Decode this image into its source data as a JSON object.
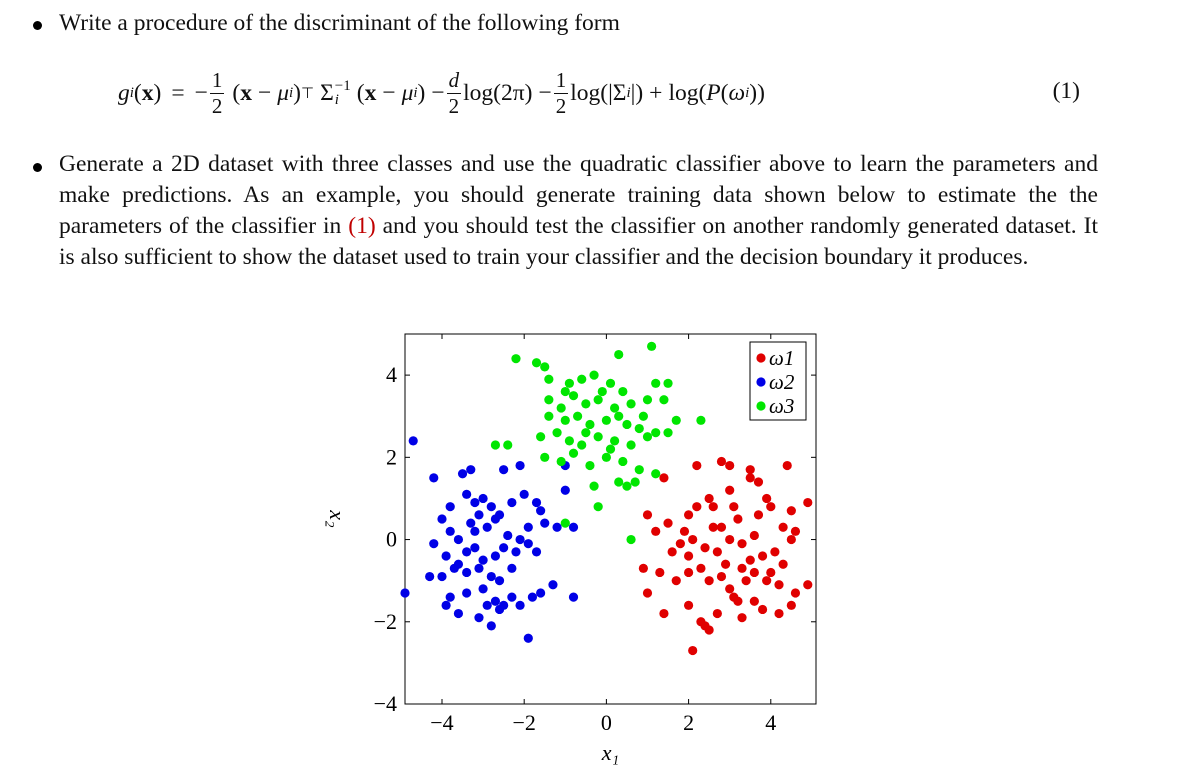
{
  "bullets": [
    {
      "text": "Write a procedure of the discriminant of the following form"
    },
    {
      "text_parts": [
        "Generate a 2D dataset with three classes and use the quadratic classifier above to learn the parameters and make predictions. As an example, you should generate training data shown below to estimate the the parameters of the classifier in ",
        "(1)",
        " and you should test the classifier on another randomly generated dataset. It is also sufficient to show the dataset used to train your classifier and the decision boundary it produces."
      ]
    }
  ],
  "equation": {
    "lhs_func": "g",
    "lhs_sub": "i",
    "lhs_arg": "x",
    "frac_num": "1",
    "frac_den": "2",
    "frac2_num": "d",
    "frac2_den": "2",
    "mu": "μ",
    "sigma": "Σ",
    "transpose": "⊤",
    "inverse": "−1",
    "log": "log",
    "two_pi": "(2π)",
    "prob": "P",
    "omega": "ω",
    "number": "(1)"
  },
  "colors": {
    "omega1": "#e00000",
    "omega2": "#0000e6",
    "omega3": "#00e600",
    "ref": "#c00000"
  },
  "chart_data": {
    "type": "scatter",
    "xlabel": "x₁",
    "ylabel": "x₂",
    "xlim": [
      -4.9,
      5.1
    ],
    "ylim": [
      -4,
      5
    ],
    "xticks": [
      -4,
      -2,
      0,
      2,
      4
    ],
    "yticks": [
      -4,
      -2,
      0,
      2,
      4
    ],
    "xtick_labels": [
      "−4",
      "−2",
      "0",
      "2",
      "4"
    ],
    "ytick_labels": [
      "−4",
      "−2",
      "0",
      "2",
      "4"
    ],
    "legend_position": "top-right",
    "series": [
      {
        "name": "ω1",
        "color": "#e00000",
        "points": [
          [
            1.4,
            1.5
          ],
          [
            2.2,
            1.8
          ],
          [
            2.8,
            1.9
          ],
          [
            3.0,
            1.8
          ],
          [
            3.5,
            1.7
          ],
          [
            4.4,
            1.8
          ],
          [
            1.0,
            0.6
          ],
          [
            1.5,
            0.4
          ],
          [
            2.0,
            0.6
          ],
          [
            2.2,
            0.8
          ],
          [
            2.5,
            1.0
          ],
          [
            2.6,
            0.8
          ],
          [
            3.0,
            1.2
          ],
          [
            3.5,
            1.5
          ],
          [
            3.7,
            1.4
          ],
          [
            3.9,
            1.0
          ],
          [
            4.0,
            0.8
          ],
          [
            3.2,
            0.5
          ],
          [
            2.8,
            0.3
          ],
          [
            3.0,
            0.0
          ],
          [
            4.5,
            0.7
          ],
          [
            4.9,
            0.9
          ],
          [
            1.2,
            0.2
          ],
          [
            1.8,
            -0.1
          ],
          [
            2.1,
            0.0
          ],
          [
            2.4,
            -0.2
          ],
          [
            2.7,
            -0.3
          ],
          [
            3.3,
            -0.1
          ],
          [
            3.6,
            0.1
          ],
          [
            3.8,
            -0.4
          ],
          [
            4.1,
            -0.3
          ],
          [
            4.3,
            -0.6
          ],
          [
            4.6,
            0.2
          ],
          [
            4.5,
            0.0
          ],
          [
            0.9,
            -0.7
          ],
          [
            1.3,
            -0.8
          ],
          [
            1.7,
            -1.0
          ],
          [
            2.0,
            -0.8
          ],
          [
            2.3,
            -0.7
          ],
          [
            2.5,
            -1.0
          ],
          [
            2.8,
            -0.9
          ],
          [
            3.0,
            -1.2
          ],
          [
            3.2,
            -1.5
          ],
          [
            3.4,
            -1.0
          ],
          [
            3.6,
            -0.8
          ],
          [
            3.9,
            -1.0
          ],
          [
            4.2,
            -1.1
          ],
          [
            4.6,
            -1.3
          ],
          [
            4.9,
            -1.1
          ],
          [
            1.0,
            -1.3
          ],
          [
            1.4,
            -1.8
          ],
          [
            2.0,
            -1.6
          ],
          [
            2.3,
            -2.0
          ],
          [
            2.5,
            -2.2
          ],
          [
            2.7,
            -1.8
          ],
          [
            3.1,
            -1.4
          ],
          [
            3.3,
            -1.9
          ],
          [
            3.8,
            -1.7
          ],
          [
            4.2,
            -1.8
          ],
          [
            4.5,
            -1.6
          ],
          [
            2.1,
            -2.7
          ],
          [
            2.4,
            -2.1
          ],
          [
            3.6,
            -1.5
          ],
          [
            1.6,
            -0.3
          ],
          [
            3.1,
            0.8
          ],
          [
            2.9,
            -0.6
          ],
          [
            3.5,
            -0.5
          ],
          [
            2.6,
            0.3
          ],
          [
            2.0,
            -0.4
          ],
          [
            3.7,
            0.6
          ],
          [
            4.0,
            -0.8
          ],
          [
            1.9,
            0.2
          ],
          [
            3.3,
            -0.7
          ],
          [
            4.3,
            0.3
          ]
        ]
      },
      {
        "name": "ω2",
        "color": "#0000e6",
        "points": [
          [
            -4.7,
            2.4
          ],
          [
            -3.5,
            1.6
          ],
          [
            -3.3,
            1.7
          ],
          [
            -2.5,
            1.7
          ],
          [
            -2.1,
            1.8
          ],
          [
            -1.0,
            1.8
          ],
          [
            -4.2,
            1.5
          ],
          [
            -3.8,
            0.8
          ],
          [
            -3.4,
            1.1
          ],
          [
            -3.2,
            0.9
          ],
          [
            -3.0,
            1.0
          ],
          [
            -2.8,
            0.8
          ],
          [
            -2.6,
            0.6
          ],
          [
            -2.3,
            0.9
          ],
          [
            -2.0,
            1.1
          ],
          [
            -1.7,
            0.9
          ],
          [
            -1.6,
            0.7
          ],
          [
            -1.0,
            1.2
          ],
          [
            -4.0,
            0.5
          ],
          [
            -3.8,
            0.2
          ],
          [
            -3.6,
            0.0
          ],
          [
            -3.3,
            0.4
          ],
          [
            -3.1,
            0.6
          ],
          [
            -2.9,
            0.3
          ],
          [
            -2.7,
            0.5
          ],
          [
            -2.4,
            0.1
          ],
          [
            -2.1,
            0.0
          ],
          [
            -1.9,
            0.3
          ],
          [
            -1.5,
            0.4
          ],
          [
            -1.2,
            0.3
          ],
          [
            -0.8,
            0.3
          ],
          [
            -4.2,
            -0.1
          ],
          [
            -3.9,
            -0.4
          ],
          [
            -3.6,
            -0.6
          ],
          [
            -3.4,
            -0.3
          ],
          [
            -3.2,
            -0.2
          ],
          [
            -3.0,
            -0.5
          ],
          [
            -2.7,
            -0.4
          ],
          [
            -2.5,
            -0.2
          ],
          [
            -2.2,
            -0.3
          ],
          [
            -1.9,
            -0.1
          ],
          [
            -1.7,
            -0.3
          ],
          [
            -4.3,
            -0.9
          ],
          [
            -4.0,
            -0.9
          ],
          [
            -3.7,
            -0.7
          ],
          [
            -3.4,
            -0.8
          ],
          [
            -3.1,
            -0.7
          ],
          [
            -2.8,
            -0.9
          ],
          [
            -2.6,
            -1.0
          ],
          [
            -2.3,
            -0.7
          ],
          [
            -4.9,
            -1.3
          ],
          [
            -3.8,
            -1.4
          ],
          [
            -3.4,
            -1.3
          ],
          [
            -3.0,
            -1.2
          ],
          [
            -2.7,
            -1.5
          ],
          [
            -2.5,
            -1.6
          ],
          [
            -2.3,
            -1.4
          ],
          [
            -2.1,
            -1.6
          ],
          [
            -1.8,
            -1.4
          ],
          [
            -1.6,
            -1.3
          ],
          [
            -1.3,
            -1.1
          ],
          [
            -0.8,
            -1.4
          ],
          [
            -3.6,
            -1.8
          ],
          [
            -3.1,
            -1.9
          ],
          [
            -2.8,
            -2.1
          ],
          [
            -2.6,
            -1.7
          ],
          [
            -1.9,
            -2.4
          ],
          [
            -3.9,
            -1.6
          ],
          [
            -2.9,
            -1.6
          ],
          [
            -3.2,
            0.2
          ]
        ]
      },
      {
        "name": "ω3",
        "color": "#00e600",
        "points": [
          [
            -2.2,
            4.4
          ],
          [
            -1.7,
            4.3
          ],
          [
            -1.5,
            4.2
          ],
          [
            0.3,
            4.5
          ],
          [
            1.1,
            4.7
          ],
          [
            -1.4,
            3.9
          ],
          [
            -1.0,
            3.6
          ],
          [
            -0.6,
            3.9
          ],
          [
            -0.3,
            4.0
          ],
          [
            0.1,
            3.8
          ],
          [
            0.4,
            3.6
          ],
          [
            1.2,
            3.8
          ],
          [
            1.5,
            3.8
          ],
          [
            -1.4,
            3.4
          ],
          [
            -1.1,
            3.2
          ],
          [
            -0.8,
            3.5
          ],
          [
            -0.5,
            3.3
          ],
          [
            -0.2,
            3.4
          ],
          [
            0.2,
            3.2
          ],
          [
            0.6,
            3.3
          ],
          [
            1.0,
            3.4
          ],
          [
            1.4,
            3.4
          ],
          [
            -1.4,
            3.0
          ],
          [
            -1.0,
            2.9
          ],
          [
            -0.7,
            3.0
          ],
          [
            -0.4,
            2.8
          ],
          [
            0.0,
            2.9
          ],
          [
            0.3,
            3.0
          ],
          [
            0.5,
            2.8
          ],
          [
            0.8,
            2.7
          ],
          [
            1.2,
            2.6
          ],
          [
            1.7,
            2.9
          ],
          [
            2.3,
            2.9
          ],
          [
            -2.7,
            2.3
          ],
          [
            -2.4,
            2.3
          ],
          [
            -1.6,
            2.5
          ],
          [
            -1.2,
            2.6
          ],
          [
            -0.9,
            2.4
          ],
          [
            -0.6,
            2.3
          ],
          [
            -0.2,
            2.5
          ],
          [
            0.2,
            2.4
          ],
          [
            0.6,
            2.3
          ],
          [
            1.0,
            2.5
          ],
          [
            1.5,
            2.6
          ],
          [
            -1.5,
            2.0
          ],
          [
            -1.1,
            1.9
          ],
          [
            -0.8,
            2.1
          ],
          [
            -0.4,
            1.8
          ],
          [
            0.0,
            2.0
          ],
          [
            0.4,
            1.9
          ],
          [
            0.8,
            1.7
          ],
          [
            1.2,
            1.6
          ],
          [
            -0.3,
            1.3
          ],
          [
            0.3,
            1.4
          ],
          [
            0.5,
            1.3
          ],
          [
            0.7,
            1.4
          ],
          [
            -0.2,
            0.8
          ],
          [
            -1.0,
            0.4
          ],
          [
            0.6,
            0.0
          ],
          [
            -0.5,
            2.6
          ],
          [
            0.1,
            2.2
          ],
          [
            -0.9,
            3.8
          ],
          [
            0.9,
            3.0
          ],
          [
            -0.1,
            3.6
          ]
        ]
      }
    ]
  }
}
